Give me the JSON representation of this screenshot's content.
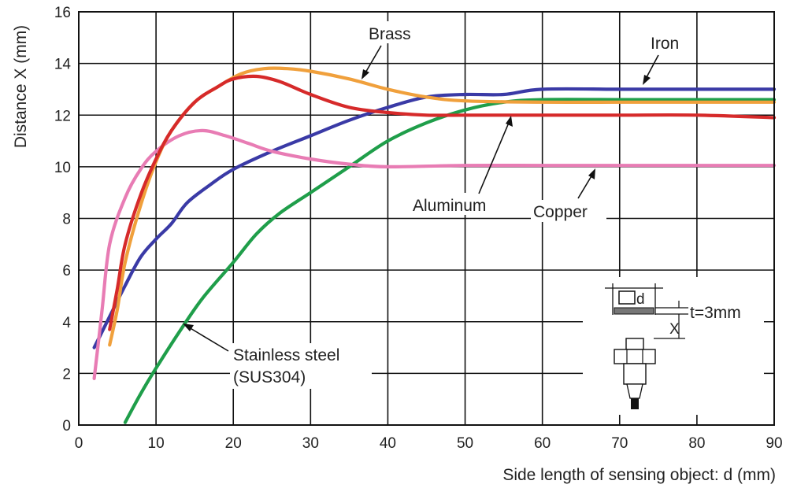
{
  "chart_data": {
    "type": "line",
    "title": "",
    "xlabel": "Side length of sensing object: d (mm)",
    "ylabel": "Distance X (mm)",
    "xlim": [
      0,
      90
    ],
    "ylim": [
      0,
      16
    ],
    "xticks": [
      0,
      10,
      20,
      30,
      40,
      50,
      60,
      70,
      80,
      90
    ],
    "yticks": [
      0,
      2,
      4,
      6,
      8,
      10,
      12,
      14,
      16
    ],
    "grid": true,
    "legend": "none",
    "series": [
      {
        "name": "Iron",
        "color": "#3a3aa6",
        "points": [
          [
            2,
            3.0
          ],
          [
            4,
            4.2
          ],
          [
            6,
            5.4
          ],
          [
            8,
            6.5
          ],
          [
            10,
            7.2
          ],
          [
            12,
            7.8
          ],
          [
            14,
            8.6
          ],
          [
            17,
            9.3
          ],
          [
            20,
            9.9
          ],
          [
            25,
            10.6
          ],
          [
            30,
            11.2
          ],
          [
            35,
            11.8
          ],
          [
            40,
            12.3
          ],
          [
            45,
            12.7
          ],
          [
            50,
            12.8
          ],
          [
            55,
            12.8
          ],
          [
            60,
            13.0
          ],
          [
            70,
            13.0
          ],
          [
            80,
            13.0
          ],
          [
            90,
            13.0
          ]
        ]
      },
      {
        "name": "Brass",
        "color": "#f0a03c",
        "points": [
          [
            4,
            3.1
          ],
          [
            5,
            4.5
          ],
          [
            6,
            6.3
          ],
          [
            8,
            8.5
          ],
          [
            10,
            10.2
          ],
          [
            12,
            11.4
          ],
          [
            15,
            12.5
          ],
          [
            18,
            13.1
          ],
          [
            21,
            13.6
          ],
          [
            24,
            13.8
          ],
          [
            27,
            13.8
          ],
          [
            30,
            13.7
          ],
          [
            35,
            13.4
          ],
          [
            40,
            13.0
          ],
          [
            45,
            12.7
          ],
          [
            50,
            12.55
          ],
          [
            60,
            12.5
          ],
          [
            70,
            12.5
          ],
          [
            80,
            12.5
          ],
          [
            90,
            12.5
          ]
        ]
      },
      {
        "name": "Aluminum",
        "color": "#d62a2a",
        "points": [
          [
            4,
            3.7
          ],
          [
            5,
            5.3
          ],
          [
            6,
            7.0
          ],
          [
            8,
            8.9
          ],
          [
            10,
            10.3
          ],
          [
            12,
            11.4
          ],
          [
            15,
            12.5
          ],
          [
            18,
            13.1
          ],
          [
            20,
            13.4
          ],
          [
            23,
            13.5
          ],
          [
            26,
            13.3
          ],
          [
            30,
            12.8
          ],
          [
            35,
            12.3
          ],
          [
            40,
            12.1
          ],
          [
            45,
            12.0
          ],
          [
            50,
            12.0
          ],
          [
            60,
            12.0
          ],
          [
            70,
            12.0
          ],
          [
            80,
            12.0
          ],
          [
            90,
            11.9
          ]
        ]
      },
      {
        "name": "Copper",
        "color": "#e87cb4",
        "points": [
          [
            2,
            1.8
          ],
          [
            3,
            4.4
          ],
          [
            4,
            7.0
          ],
          [
            6,
            8.8
          ],
          [
            8,
            9.9
          ],
          [
            10,
            10.6
          ],
          [
            13,
            11.2
          ],
          [
            16,
            11.4
          ],
          [
            19,
            11.2
          ],
          [
            22,
            10.9
          ],
          [
            25,
            10.6
          ],
          [
            30,
            10.3
          ],
          [
            35,
            10.1
          ],
          [
            40,
            10.0
          ],
          [
            50,
            10.05
          ],
          [
            60,
            10.05
          ],
          [
            70,
            10.05
          ],
          [
            80,
            10.05
          ],
          [
            90,
            10.05
          ]
        ]
      },
      {
        "name": "Stainless steel\n(SUS304)",
        "color": "#1f9e4a",
        "points": [
          [
            6,
            0.1
          ],
          [
            8,
            1.2
          ],
          [
            10,
            2.2
          ],
          [
            13,
            3.6
          ],
          [
            16,
            4.9
          ],
          [
            20,
            6.3
          ],
          [
            23,
            7.4
          ],
          [
            26,
            8.2
          ],
          [
            30,
            9.0
          ],
          [
            35,
            10.0
          ],
          [
            40,
            11.0
          ],
          [
            45,
            11.7
          ],
          [
            50,
            12.2
          ],
          [
            55,
            12.5
          ],
          [
            60,
            12.6
          ],
          [
            70,
            12.6
          ],
          [
            80,
            12.6
          ],
          [
            90,
            12.6
          ]
        ]
      }
    ],
    "annotations": [
      {
        "text": "Brass",
        "series": "Brass"
      },
      {
        "text": "Iron",
        "series": "Iron"
      },
      {
        "text": "Aluminum",
        "series": "Aluminum"
      },
      {
        "text": "Copper",
        "series": "Copper"
      },
      {
        "text": "Stainless steel",
        "series": "Stainless steel"
      },
      {
        "text": "(SUS304)",
        "series": "Stainless steel"
      }
    ],
    "inset": {
      "description_labels": [
        "d",
        "t=3mm",
        "X"
      ]
    }
  }
}
